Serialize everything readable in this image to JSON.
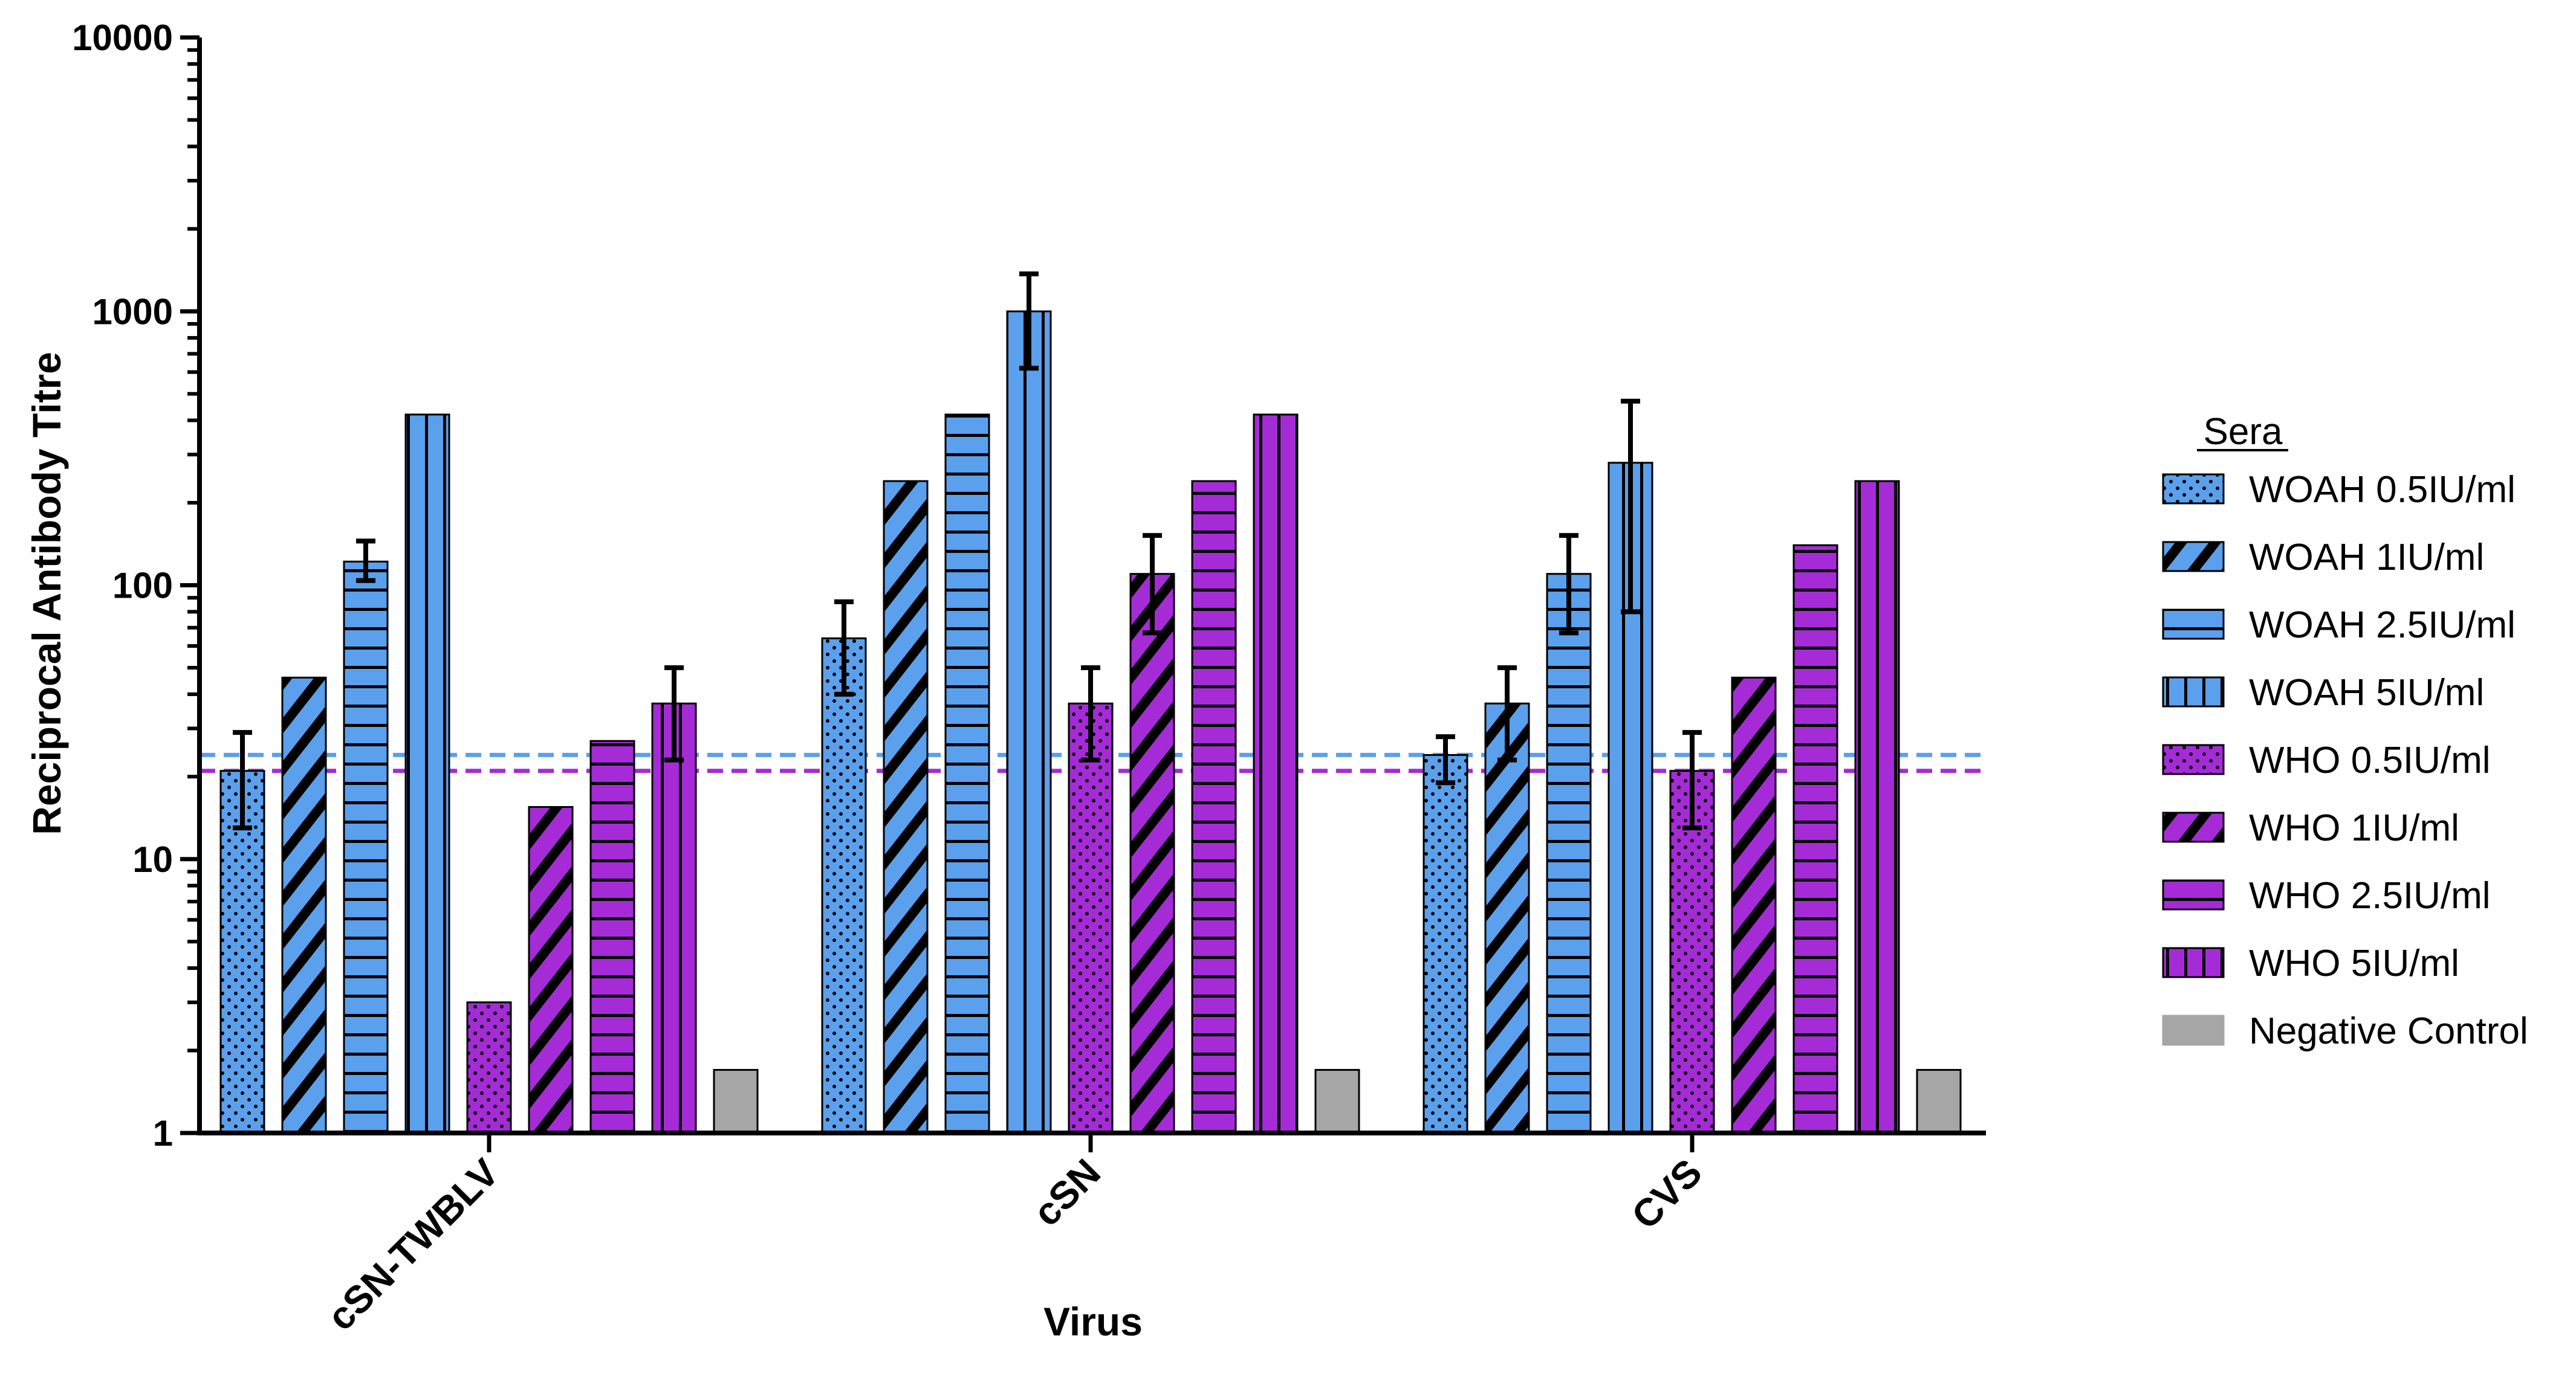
{
  "chart_data": {
    "type": "bar",
    "yscale": "log",
    "title": "",
    "xlabel": "Virus",
    "ylabel": "Reciprocal Antibody Titre",
    "ylim": [
      1,
      10000
    ],
    "yticks": [
      {
        "value": 1,
        "label": "1"
      },
      {
        "value": 10,
        "label": "10"
      },
      {
        "value": 100,
        "label": "100"
      },
      {
        "value": 1000,
        "label": "1000"
      },
      {
        "value": 10000,
        "label": "10000"
      }
    ],
    "categories": [
      "cSN-TWBLV",
      "cSN",
      "CVS"
    ],
    "legend_title": "Sera",
    "legend_position": "right",
    "series": [
      {
        "name": "WOAH 0.5IU/ml",
        "color": "#5aa0ec",
        "pattern": "dots",
        "values": [
          21,
          64,
          24
        ],
        "err_low": [
          13,
          40,
          19
        ],
        "err_high": [
          29,
          87,
          28
        ]
      },
      {
        "name": "WOAH 1IU/ml",
        "color": "#5aa0ec",
        "pattern": "diagonal",
        "values": [
          46,
          240,
          37
        ],
        "err_low": [
          null,
          null,
          23
        ],
        "err_high": [
          null,
          null,
          50
        ]
      },
      {
        "name": "WOAH 2.5IU/ml",
        "color": "#5aa0ec",
        "pattern": "horizontal",
        "values": [
          122,
          420,
          110
        ],
        "err_low": [
          104,
          null,
          67
        ],
        "err_high": [
          145,
          null,
          152
        ]
      },
      {
        "name": "WOAH 5IU/ml",
        "color": "#5aa0ec",
        "pattern": "vertical",
        "values": [
          420,
          1000,
          280
        ],
        "err_low": [
          null,
          620,
          80
        ],
        "err_high": [
          null,
          1370,
          470
        ]
      },
      {
        "name": "WHO 0.5IU/ml",
        "color": "#a52bd6",
        "pattern": "dots",
        "values": [
          3,
          37,
          21
        ],
        "err_low": [
          null,
          23,
          13
        ],
        "err_high": [
          null,
          50,
          29
        ]
      },
      {
        "name": "WHO 1IU/ml",
        "color": "#a52bd6",
        "pattern": "diagonal",
        "values": [
          15.5,
          110,
          46
        ],
        "err_low": [
          null,
          67,
          null
        ],
        "err_high": [
          null,
          152,
          null
        ]
      },
      {
        "name": "WHO 2.5IU/ml",
        "color": "#a52bd6",
        "pattern": "horizontal",
        "values": [
          27,
          240,
          140
        ],
        "err_low": [
          null,
          null,
          null
        ],
        "err_high": [
          null,
          null,
          null
        ]
      },
      {
        "name": "WHO 5IU/ml",
        "color": "#a52bd6",
        "pattern": "vertical",
        "values": [
          37,
          420,
          240
        ],
        "err_low": [
          23,
          null,
          null
        ],
        "err_high": [
          50,
          null,
          null
        ]
      },
      {
        "name": "Negative Control",
        "color": "#a6a6a6",
        "pattern": "solid",
        "values": [
          1.7,
          1.7,
          1.7
        ],
        "err_low": [
          null,
          null,
          null
        ],
        "err_high": [
          null,
          null,
          null
        ]
      }
    ],
    "reference_lines": [
      {
        "value": 24,
        "color": "#5aa0ec",
        "style": "dashed"
      },
      {
        "value": 21,
        "color": "#a52bd6",
        "style": "dashed"
      }
    ]
  }
}
